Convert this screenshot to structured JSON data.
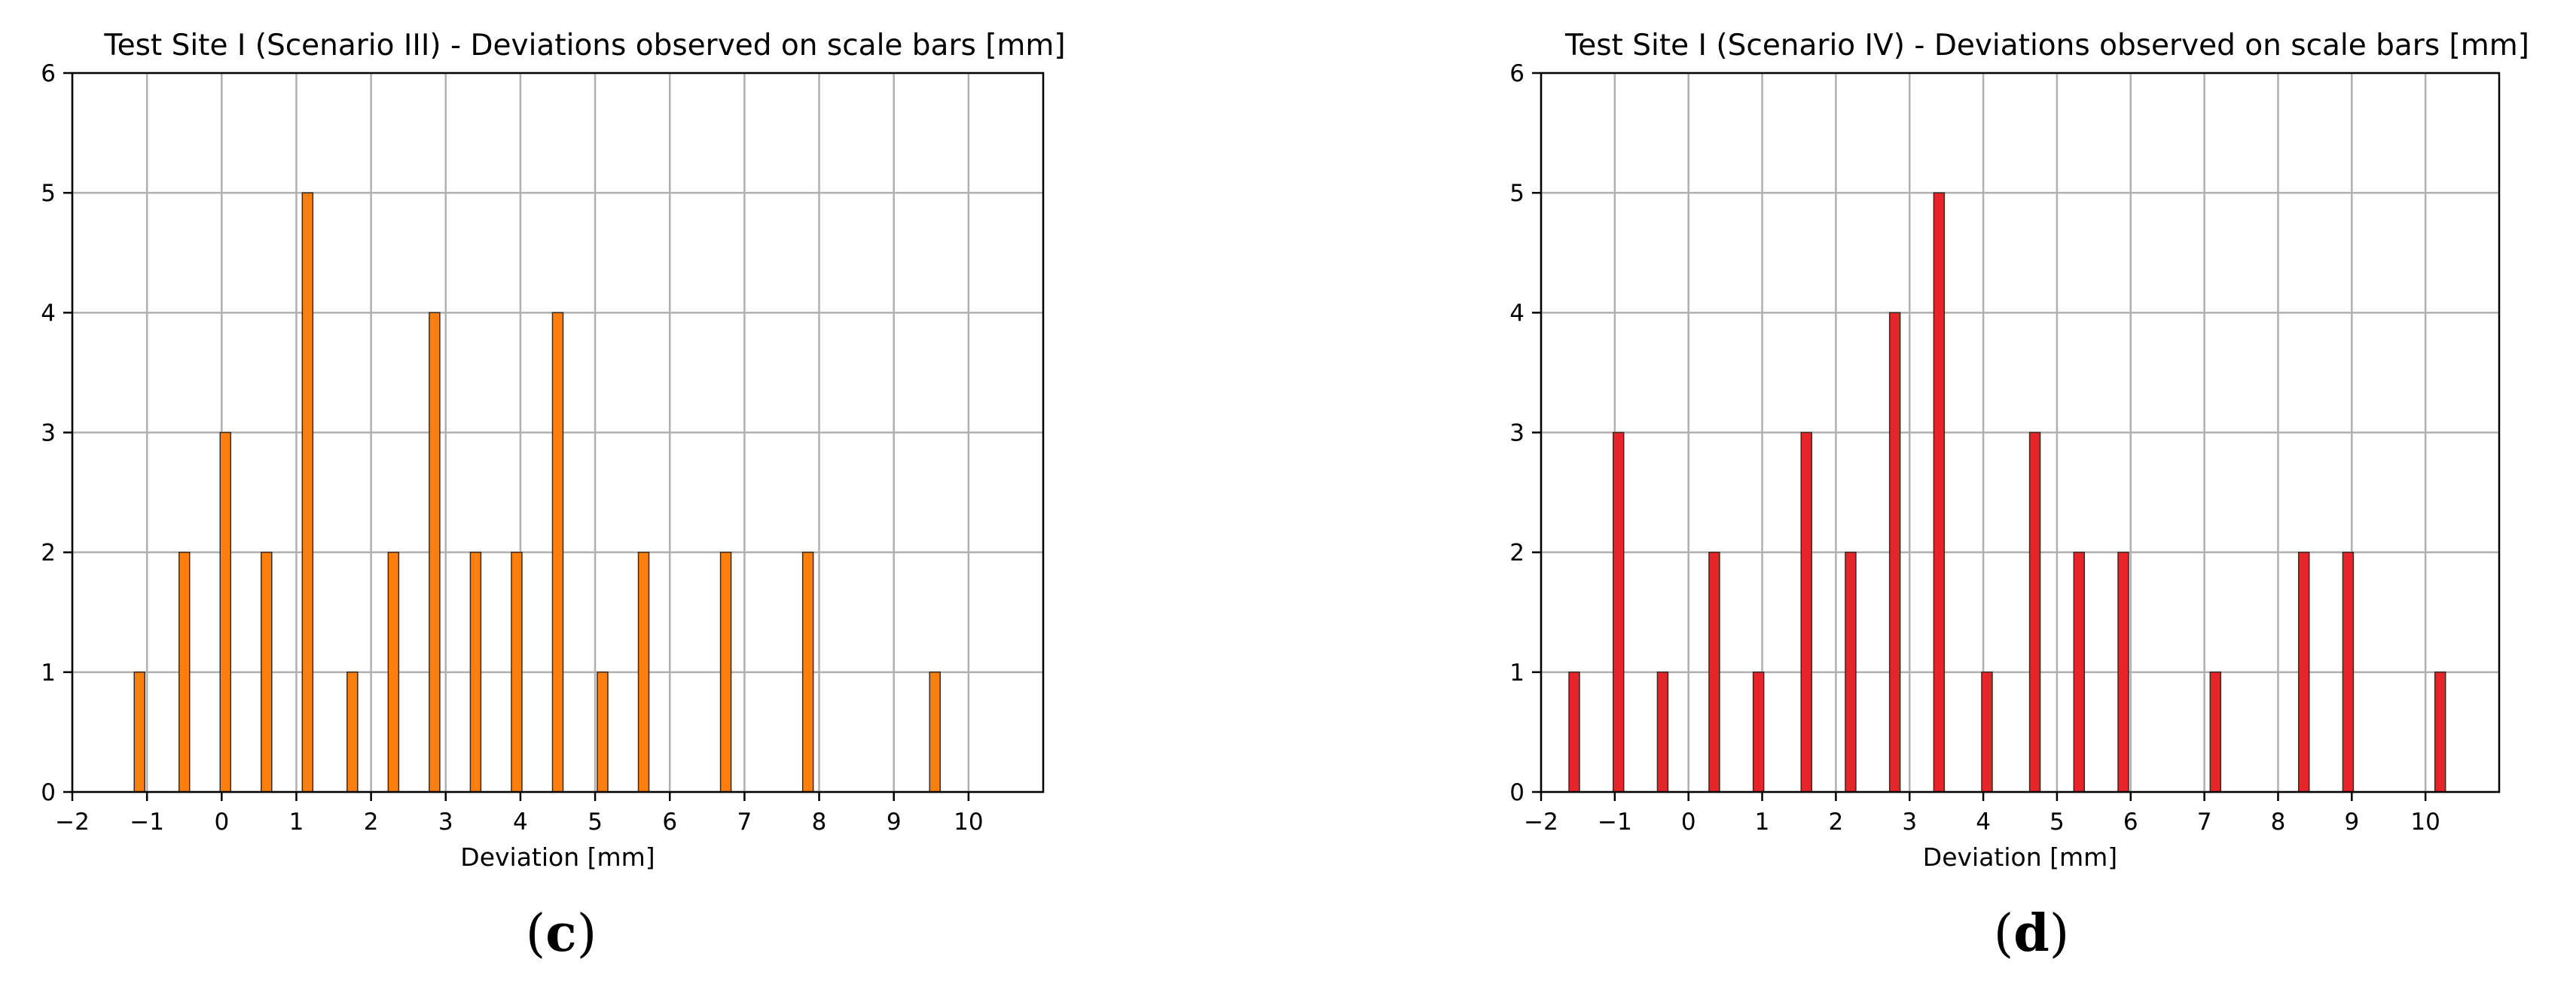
{
  "chart_data": [
    {
      "type": "bar",
      "title": "Test Site I (Scenario III) - Deviations observed on scale bars [mm]",
      "xlabel": "Deviation [mm]",
      "ylabel": "",
      "xlim": [
        -2,
        11
      ],
      "ylim": [
        0,
        6
      ],
      "xticks": [
        -2,
        -1,
        0,
        1,
        2,
        3,
        4,
        5,
        6,
        7,
        8,
        9,
        10
      ],
      "yticks": [
        0,
        1,
        2,
        3,
        4,
        5,
        6
      ],
      "grid": true,
      "bar_color": "#ff7f0e",
      "x": [
        -1.1,
        -0.5,
        0.05,
        0.6,
        1.15,
        1.75,
        2.3,
        2.85,
        3.4,
        3.95,
        4.5,
        5.1,
        5.65,
        6.75,
        7.85,
        9.55
      ],
      "values": [
        1,
        2,
        3,
        2,
        5,
        1,
        2,
        4,
        2,
        2,
        4,
        1,
        2,
        2,
        2,
        1
      ],
      "panel_open": "(",
      "panel_letter": "c",
      "panel_close": ")"
    },
    {
      "type": "bar",
      "title": "Test Site I (Scenario IV) - Deviations observed on scale bars [mm]",
      "xlabel": "Deviation [mm]",
      "ylabel": "",
      "xlim": [
        -2,
        11
      ],
      "ylim": [
        0,
        6
      ],
      "xticks": [
        -2,
        -1,
        0,
        1,
        2,
        3,
        4,
        5,
        6,
        7,
        8,
        9,
        10
      ],
      "yticks": [
        0,
        1,
        2,
        3,
        4,
        5,
        6
      ],
      "grid": true,
      "bar_color": "#e8242b",
      "x": [
        -1.55,
        -0.95,
        -0.35,
        0.35,
        0.95,
        1.6,
        2.2,
        2.8,
        3.4,
        4.05,
        4.7,
        5.3,
        5.9,
        7.15,
        8.35,
        8.95,
        10.2
      ],
      "values": [
        1,
        3,
        1,
        2,
        1,
        3,
        2,
        4,
        5,
        1,
        3,
        2,
        2,
        1,
        2,
        2,
        1
      ],
      "panel_open": "(",
      "panel_letter": "d",
      "panel_close": ")"
    }
  ]
}
